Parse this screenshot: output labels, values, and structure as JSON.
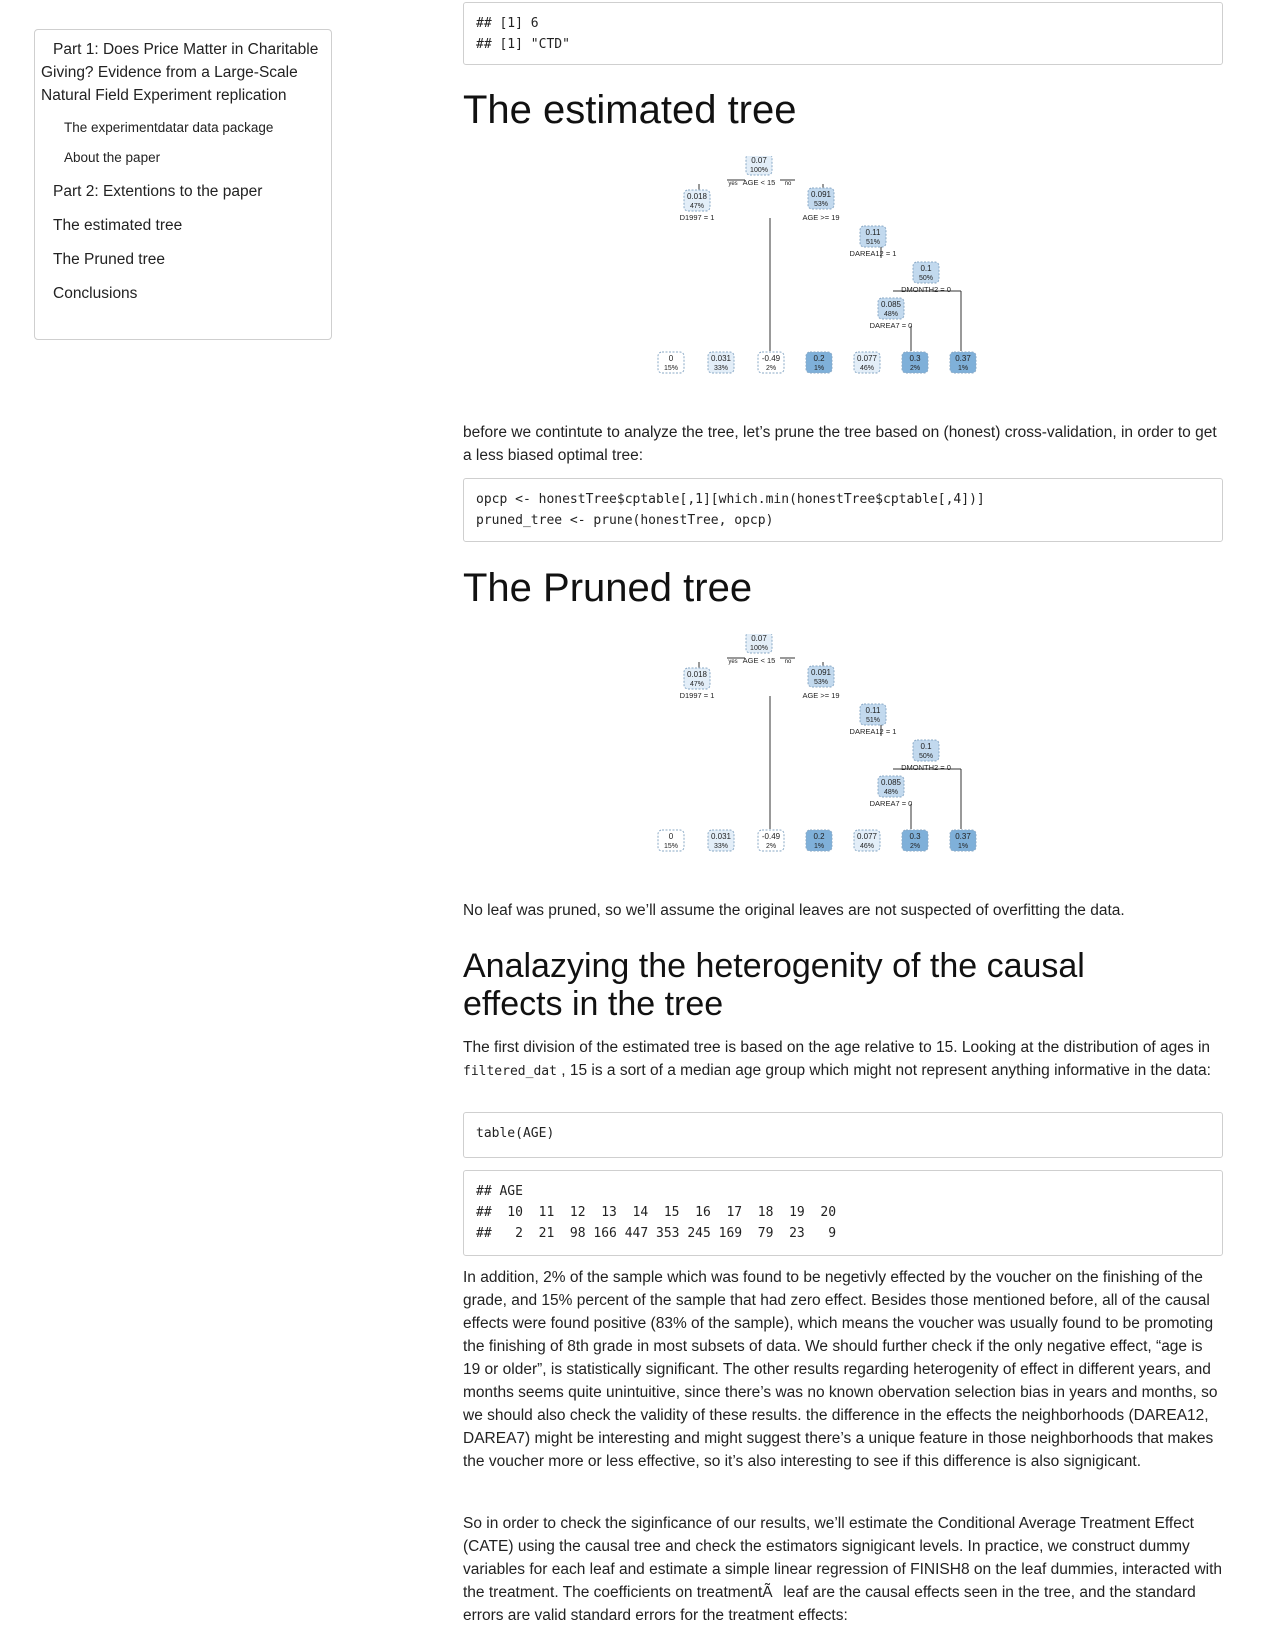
{
  "toc": {
    "items": [
      "Part 1: Does Price Matter in Charitable Giving? Evidence from a Large-Scale Natural Field Experiment replication",
      "The experimentdatar data package",
      "About the paper",
      "Part 2: Extentions to the paper",
      "The estimated tree",
      "The Pruned tree",
      "Conclusions"
    ]
  },
  "output1": "## [1] 6\n## [1] \"CTD\"",
  "heading_estimated": "The estimated tree",
  "tree": {
    "root": {
      "value": "0.07",
      "pct": "100%",
      "split": "AGE < 15"
    },
    "yes_label": "yes",
    "no_label": "no",
    "left": {
      "value": "0.018",
      "pct": "47%",
      "split": "D1997 = 1"
    },
    "right": {
      "value": "0.091",
      "pct": "53%",
      "split": "AGE >= 19"
    },
    "n3": {
      "value": "0.11",
      "pct": "51%",
      "split": "DAREA12 = 1"
    },
    "n4": {
      "value": "0.1",
      "pct": "50%",
      "split": "DMONTH2 = 0"
    },
    "n5": {
      "value": "0.085",
      "pct": "48%",
      "split": "DAREA7 = 0"
    },
    "leaves": [
      {
        "value": "0",
        "pct": "15%"
      },
      {
        "value": "0.031",
        "pct": "33%"
      },
      {
        "value": "-0.49",
        "pct": "2%"
      },
      {
        "value": "0.2",
        "pct": "1%"
      },
      {
        "value": "0.077",
        "pct": "46%"
      },
      {
        "value": "0.3",
        "pct": "2%"
      },
      {
        "value": "0.37",
        "pct": "1%"
      }
    ],
    "colors": {
      "light": "#e3eef8",
      "mid": "#c2d9ee",
      "dark": "#7fb0d9",
      "edge": "#333333"
    }
  },
  "para_prune": "before we contintute to analyze the tree, let’s prune the tree based on (honest) cross-validation, in order to get a less biased optimal tree:",
  "code_prune": "opcp <- honestTree$cptable[,1][which.min(honestTree$cptable[,4])]\npruned_tree <- prune(honestTree, opcp)",
  "heading_pruned": "The Pruned tree",
  "para_noleaf": "No leaf was pruned, so we’ll assume the original leaves are not suspected of overfitting the data.",
  "heading_analyze": "Analazying the heterogenity of the causal effects in the tree",
  "para_first_a": "The first division of the estimated tree is based on the age relative to 15. Looking at the distribution of ages in ",
  "para_first_code": "filtered_dat",
  "para_first_b": " , 15 is a sort of a median age group which might not represent anything informative in the data:",
  "code_table": "table(AGE)",
  "output_table": "## AGE\n##  10  11  12  13  14  15  16  17  18  19  20\n##   2  21  98 166 447 353 245 169  79  23   9",
  "para_addition": "In addition, 2% of the sample which was found to be negetivly effected by the voucher on the finishing of the grade, and 15% percent of the sample that had zero effect. Besides those mentioned before, all of the causal effects were found positive (83% of the sample), which means the voucher was usually found to be promoting the finishing of 8th grade in most subsets of data. We should further check if the only negative effect, “age is 19 or older”, is statistically significant. The other results regarding heterogenity of effect in different years, and months seems quite unintuitive, since there’s was no known obervation selection bias in years and months, so we should also check the validity of these results. the difference in the effects the neighborhoods (DAREA12, DAREA7) might be interesting and might suggest there’s a unique feature in those neighborhoods that makes the voucher more or less effective, so it’s also interesting to see if this difference is also signigicant.",
  "para_cate": "So in order to check the siginficance of our results, we’ll estimate the Conditional Average Treatment Effect (CATE) using the causal tree and check the estimators signigicant levels. In practice, we construct dummy variables for each leaf and estimate a simple linear regression of FINISH8 on the leaf dummies, interacted with the treatment. The coefficients on treatmentÃleaf are the causal effects seen in the tree, and the standard errors are valid standard errors for the treatment effects:"
}
